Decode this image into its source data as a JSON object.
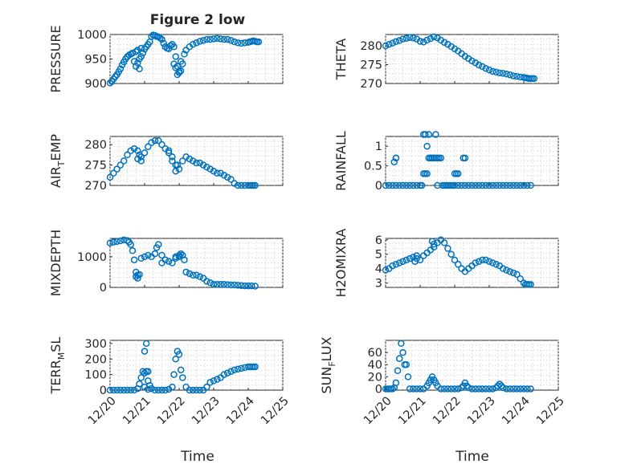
{
  "figure": {
    "title": "Figure 2 low",
    "xlabel": "Time",
    "x_ticks": [
      "12/20",
      "12/21",
      "12/22",
      "12/23",
      "12/24",
      "12/25"
    ],
    "marker_color": "#0072bd"
  },
  "chart_data": [
    {
      "type": "scatter",
      "title": "Figure 2 low",
      "ylabel_parts": [
        "PRESSURE"
      ],
      "xlabel": "",
      "yticks": [
        "900",
        "950",
        "1000"
      ],
      "ylim": [
        900,
        1000
      ],
      "xlim": [
        0,
        5
      ],
      "grid": true,
      "x": [
        0.0,
        0.05,
        0.1,
        0.15,
        0.2,
        0.25,
        0.3,
        0.35,
        0.4,
        0.45,
        0.5,
        0.55,
        0.6,
        0.65,
        0.7,
        0.75,
        0.8,
        0.85,
        0.9,
        0.95,
        1.0,
        1.05,
        1.1,
        1.15,
        1.2,
        1.25,
        1.3,
        1.35,
        1.4,
        1.45,
        1.5,
        1.55,
        1.6,
        1.65,
        1.7,
        1.75,
        1.8,
        1.85,
        1.9,
        1.95,
        2.0,
        2.05,
        2.1,
        2.15,
        2.2,
        2.3,
        2.4,
        2.5,
        2.6,
        2.7,
        2.8,
        2.9,
        3.0,
        3.1,
        3.2,
        3.3,
        3.4,
        3.5,
        3.6,
        3.7,
        3.8,
        3.9,
        4.0,
        4.05,
        4.1,
        4.15,
        4.2,
        4.25,
        4.3,
        0.75,
        0.8,
        0.9,
        0.85,
        1.85,
        1.9,
        1.95,
        2.0,
        2.05
      ],
      "values": [
        901,
        904,
        909,
        914,
        918,
        924,
        930,
        938,
        944,
        950,
        955,
        958,
        960,
        962,
        945,
        935,
        942,
        950,
        955,
        962,
        970,
        975,
        980,
        985,
        996,
        999,
        998,
        996,
        995,
        993,
        990,
        982,
        975,
        972,
        971,
        977,
        980,
        975,
        955,
        935,
        922,
        926,
        940,
        960,
        968,
        975,
        980,
        983,
        986,
        988,
        990,
        990,
        991,
        992,
        991,
        990,
        990,
        988,
        985,
        983,
        982,
        983,
        984,
        985,
        986,
        987,
        986,
        985,
        985,
        965,
        968,
        972,
        930,
        940,
        932,
        918,
        925,
        945
      ],
      "series_name": ""
    },
    {
      "type": "scatter",
      "title": "",
      "ylabel_parts": [
        "THETA"
      ],
      "xlabel": "",
      "yticks": [
        "270",
        "275",
        "280"
      ],
      "ylim": [
        270,
        283
      ],
      "xlim": [
        0,
        5
      ],
      "grid": true,
      "x": [
        0.0,
        0.1,
        0.2,
        0.3,
        0.4,
        0.5,
        0.6,
        0.7,
        0.8,
        0.9,
        1.0,
        1.1,
        1.2,
        1.3,
        1.4,
        1.5,
        1.6,
        1.7,
        1.8,
        1.9,
        2.0,
        2.1,
        2.2,
        2.3,
        2.4,
        2.5,
        2.6,
        2.7,
        2.8,
        2.9,
        3.0,
        3.1,
        3.2,
        3.3,
        3.4,
        3.5,
        3.6,
        3.7,
        3.8,
        3.9,
        4.0,
        4.05,
        4.1,
        4.15,
        4.2,
        4.25,
        4.3
      ],
      "values": [
        280.0,
        280.4,
        280.7,
        281.1,
        281.4,
        281.8,
        282.0,
        282.2,
        282.1,
        281.8,
        281.2,
        281.0,
        281.5,
        281.9,
        282.4,
        282.1,
        281.5,
        280.9,
        280.4,
        279.8,
        279.2,
        278.6,
        277.9,
        277.2,
        276.6,
        276.0,
        275.5,
        274.9,
        274.5,
        274.0,
        273.6,
        273.2,
        273.0,
        272.8,
        272.7,
        272.5,
        272.3,
        272.0,
        271.9,
        271.7,
        271.6,
        271.5,
        271.4,
        271.3,
        271.3,
        271.3,
        271.3
      ],
      "series_name": ""
    },
    {
      "type": "scatter",
      "title": "",
      "ylabel_parts": [
        "AIR",
        "T",
        "EMP"
      ],
      "xlabel": "",
      "yticks": [
        "270",
        "275",
        "280"
      ],
      "ylim": [
        270,
        282
      ],
      "xlim": [
        0,
        5
      ],
      "grid": true,
      "x": [
        0.0,
        0.1,
        0.2,
        0.3,
        0.4,
        0.5,
        0.6,
        0.7,
        0.8,
        0.9,
        1.0,
        1.1,
        1.2,
        1.3,
        1.4,
        1.5,
        1.6,
        1.7,
        1.8,
        1.9,
        2.0,
        2.1,
        2.2,
        2.3,
        2.4,
        2.5,
        2.6,
        2.7,
        2.8,
        2.9,
        3.0,
        3.1,
        3.2,
        3.3,
        3.4,
        3.5,
        3.6,
        3.7,
        3.8,
        3.9,
        4.0,
        4.05,
        4.1,
        4.15,
        4.2,
        0.8,
        0.85,
        0.9,
        1.7,
        1.8,
        1.9,
        1.95
      ],
      "values": [
        272,
        273,
        274,
        275,
        276,
        277.5,
        278.5,
        279,
        278.5,
        277,
        278,
        279.5,
        280.5,
        281,
        281,
        280,
        279,
        278,
        277,
        275,
        274,
        276,
        277,
        276.5,
        276,
        275.5,
        275.5,
        275,
        274.5,
        274,
        273.5,
        273,
        273,
        272.5,
        272,
        271.5,
        270.5,
        270,
        270,
        270,
        270,
        270,
        270,
        270,
        270,
        276.5,
        277.5,
        276,
        278.5,
        276,
        273.5,
        275
      ],
      "series_name": ""
    },
    {
      "type": "scatter",
      "title": "",
      "ylabel_parts": [
        "RAINFALL"
      ],
      "xlabel": "",
      "yticks": [
        "0",
        "0.5",
        "1"
      ],
      "ylim": [
        0,
        1.25
      ],
      "xlim": [
        0,
        5
      ],
      "grid": true,
      "x": [
        0.0,
        0.1,
        0.2,
        0.3,
        0.4,
        0.5,
        0.6,
        0.7,
        0.8,
        0.9,
        1.0,
        1.05,
        1.1,
        1.15,
        1.2,
        1.25,
        1.3,
        1.35,
        1.4,
        1.45,
        1.5,
        1.55,
        1.6,
        1.65,
        1.7,
        1.75,
        1.8,
        1.85,
        1.9,
        1.95,
        2.0,
        2.1,
        2.2,
        2.3,
        2.4,
        2.5,
        2.6,
        2.7,
        2.8,
        2.9,
        3.0,
        3.1,
        3.2,
        3.3,
        3.4,
        3.5,
        3.6,
        3.7,
        3.8,
        3.9,
        4.0,
        4.1,
        4.2,
        0.25,
        0.3,
        1.1,
        1.15,
        1.2,
        1.25,
        1.3,
        1.35,
        1.4,
        1.45,
        1.5,
        2.0,
        2.05,
        2.1,
        2.25,
        2.3,
        0.3,
        1.5
      ],
      "values": [
        0,
        0,
        0,
        0,
        0,
        0,
        0,
        0,
        0,
        0,
        0,
        0,
        0.3,
        0.3,
        0.3,
        0.7,
        0.7,
        0.7,
        0.7,
        0.7,
        0.7,
        0.7,
        0.7,
        0,
        0,
        0,
        0,
        0,
        0,
        0,
        0,
        0,
        0,
        0,
        0,
        0,
        0,
        0,
        0,
        0,
        0,
        0,
        0,
        0,
        0,
        0,
        0,
        0,
        0,
        0,
        0,
        0,
        0,
        0.6,
        0.7,
        1.3,
        1.3,
        1.0,
        1.3,
        0.7,
        0.7,
        0.7,
        1.3,
        0.7,
        0.3,
        0.3,
        0.3,
        0.7,
        0.7,
        0.7,
        0
      ],
      "series_name": ""
    },
    {
      "type": "scatter",
      "title": "",
      "ylabel_parts": [
        "MIXDEPTH"
      ],
      "xlabel": "",
      "yticks": [
        "0",
        "1000"
      ],
      "ylim": [
        0,
        1600
      ],
      "xlim": [
        0,
        5
      ],
      "grid": true,
      "x": [
        0.0,
        0.1,
        0.2,
        0.3,
        0.4,
        0.5,
        0.55,
        0.6,
        0.65,
        0.7,
        0.75,
        0.8,
        0.9,
        1.0,
        1.1,
        1.2,
        1.3,
        1.35,
        1.4,
        1.5,
        1.6,
        1.7,
        1.8,
        1.9,
        2.0,
        2.05,
        2.1,
        2.15,
        2.2,
        2.3,
        2.4,
        2.5,
        2.6,
        2.7,
        2.8,
        2.9,
        3.0,
        3.1,
        3.2,
        3.3,
        3.4,
        3.5,
        3.6,
        3.7,
        3.8,
        3.9,
        4.0,
        4.1,
        4.2,
        0.75,
        0.8,
        0.85,
        1.5,
        1.9,
        2.0
      ],
      "values": [
        1450,
        1480,
        1500,
        1520,
        1550,
        1530,
        1480,
        1400,
        1200,
        900,
        500,
        400,
        950,
        1000,
        1050,
        1000,
        1100,
        1300,
        1400,
        1050,
        900,
        850,
        800,
        950,
        1000,
        1100,
        1050,
        900,
        500,
        450,
        400,
        400,
        350,
        300,
        200,
        150,
        100,
        100,
        100,
        100,
        90,
        80,
        80,
        70,
        60,
        50,
        50,
        50,
        40,
        350,
        300,
        420,
        800,
        1000,
        1050
      ],
      "series_name": ""
    },
    {
      "type": "scatter",
      "title": "",
      "ylabel_parts": [
        "H2OMIXRA"
      ],
      "xlabel": "",
      "yticks": [
        "3",
        "4",
        "5",
        "6"
      ],
      "ylim": [
        2.7,
        6.1
      ],
      "xlim": [
        0,
        5
      ],
      "grid": true,
      "x": [
        0.0,
        0.1,
        0.2,
        0.3,
        0.4,
        0.5,
        0.6,
        0.7,
        0.8,
        0.9,
        1.0,
        1.1,
        1.2,
        1.3,
        1.4,
        1.5,
        1.6,
        1.7,
        1.8,
        1.9,
        2.0,
        2.1,
        2.2,
        2.3,
        2.4,
        2.5,
        2.6,
        2.7,
        2.8,
        2.9,
        3.0,
        3.1,
        3.2,
        3.3,
        3.4,
        3.5,
        3.6,
        3.7,
        3.8,
        3.9,
        4.0,
        4.05,
        4.1,
        4.15,
        4.2,
        0.85,
        0.9,
        1.35,
        1.4
      ],
      "values": [
        3.9,
        4.0,
        4.2,
        4.3,
        4.4,
        4.5,
        4.6,
        4.7,
        4.8,
        4.7,
        4.6,
        4.9,
        5.1,
        5.3,
        5.5,
        5.8,
        6.0,
        5.8,
        5.4,
        5.0,
        4.6,
        4.3,
        4.0,
        3.8,
        4.0,
        4.2,
        4.4,
        4.5,
        4.6,
        4.6,
        4.5,
        4.4,
        4.3,
        4.2,
        4.0,
        3.9,
        3.8,
        3.7,
        3.6,
        3.3,
        3.0,
        2.9,
        2.9,
        2.9,
        2.9,
        4.5,
        4.9,
        5.9,
        5.7
      ],
      "series_name": ""
    },
    {
      "type": "scatter",
      "title": "",
      "ylabel_parts": [
        "TERR",
        "M",
        "SL"
      ],
      "xlabel": "",
      "yticks": [
        "0",
        "100",
        "200",
        "300"
      ],
      "ylim": [
        0,
        320
      ],
      "xlim": [
        0,
        5
      ],
      "grid": true,
      "x": [
        0.0,
        0.1,
        0.2,
        0.3,
        0.4,
        0.5,
        0.6,
        0.7,
        0.8,
        0.85,
        0.9,
        0.95,
        1.0,
        1.05,
        1.1,
        1.15,
        1.2,
        1.3,
        1.4,
        1.5,
        1.6,
        1.7,
        1.8,
        1.85,
        1.9,
        1.95,
        2.0,
        2.05,
        2.1,
        2.2,
        2.3,
        2.4,
        2.5,
        2.6,
        2.7,
        2.8,
        2.9,
        3.0,
        3.1,
        3.2,
        3.3,
        3.4,
        3.5,
        3.6,
        3.7,
        3.8,
        3.9,
        4.0,
        4.05,
        4.1,
        4.15,
        4.2,
        1.0,
        1.05,
        1.1,
        1.0,
        1.1
      ],
      "values": [
        0,
        0,
        0,
        0,
        0,
        0,
        0,
        0,
        10,
        40,
        80,
        120,
        110,
        120,
        60,
        30,
        10,
        0,
        0,
        0,
        0,
        5,
        20,
        100,
        200,
        250,
        230,
        130,
        80,
        20,
        0,
        0,
        0,
        0,
        0,
        20,
        50,
        60,
        70,
        80,
        100,
        110,
        120,
        130,
        135,
        140,
        145,
        150,
        150,
        150,
        150,
        150,
        250,
        300,
        120,
        20,
        5
      ],
      "series_name": ""
    },
    {
      "type": "scatter",
      "title": "",
      "ylabel_parts": [
        "SUN",
        "F",
        "LUX"
      ],
      "xlabel": "",
      "yticks": [
        "0",
        "20",
        "40",
        "60"
      ],
      "ylim": [
        -2,
        80
      ],
      "xlim": [
        0,
        5
      ],
      "grid": true,
      "x": [
        0.0,
        0.05,
        0.1,
        0.15,
        0.2,
        0.25,
        0.3,
        0.35,
        0.4,
        0.45,
        0.5,
        0.55,
        0.6,
        0.65,
        0.7,
        0.8,
        0.9,
        1.0,
        1.1,
        1.2,
        1.25,
        1.3,
        1.35,
        1.4,
        1.45,
        1.5,
        1.6,
        1.7,
        1.8,
        1.9,
        2.0,
        2.1,
        2.2,
        2.25,
        2.3,
        2.35,
        2.4,
        2.5,
        2.6,
        2.7,
        2.8,
        2.9,
        3.0,
        3.1,
        3.2,
        3.25,
        3.3,
        3.35,
        3.4,
        3.5,
        3.6,
        3.7,
        3.8,
        3.9,
        4.0,
        4.1,
        4.2
      ],
      "values": [
        0,
        0,
        0,
        0,
        0,
        2,
        10,
        30,
        50,
        75,
        60,
        40,
        40,
        20,
        0,
        0,
        0,
        0,
        0,
        5,
        10,
        15,
        20,
        15,
        10,
        5,
        0,
        0,
        0,
        0,
        0,
        0,
        2,
        5,
        10,
        5,
        2,
        0,
        0,
        0,
        0,
        0,
        0,
        0,
        2,
        5,
        8,
        5,
        2,
        0,
        0,
        0,
        0,
        0,
        0,
        0,
        0
      ],
      "series_name": ""
    }
  ]
}
